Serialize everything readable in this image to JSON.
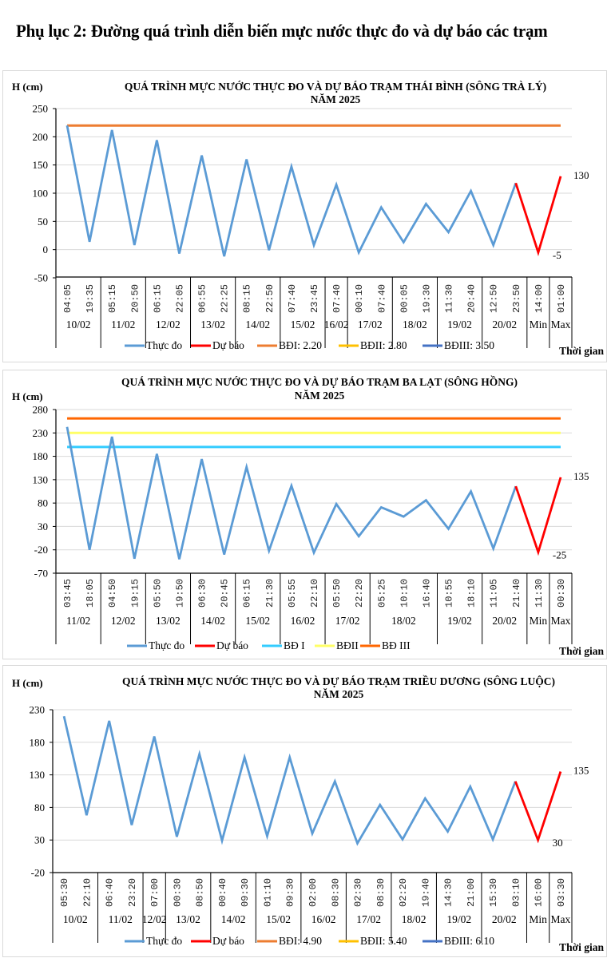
{
  "page": {
    "title": "Phụ lục 2: Đường quá trình diễn biến mực nước thực đo và dự báo các trạm"
  },
  "chart_data": [
    {
      "id": "thai-binh",
      "type": "line",
      "title": [
        "QUÁ TRÌNH MỰC NƯỚC THỰC ĐO VÀ DỰ BÁO TRẠM THÁI BÌNH (SÔNG TRÀ LÝ)",
        "NĂM 2025"
      ],
      "ylabel": "H (cm)",
      "xlabel": "Thời gian",
      "ylim": [
        -50,
        250
      ],
      "yticks": [
        -50,
        0,
        50,
        100,
        150,
        200,
        250
      ],
      "grid": true,
      "legend_position": "bottom",
      "x": [
        "04:05",
        "19:35",
        "05:15",
        "20:50",
        "06:15",
        "22:05",
        "06:55",
        "22:25",
        "08:15",
        "22:50",
        "07:40",
        "23:45",
        "07:40",
        "00:10",
        "07:40",
        "00:05",
        "19:30",
        "11:30",
        "20:40",
        "12:50",
        "23:50",
        "14:00",
        "01:00"
      ],
      "groups": [
        {
          "label": "10/02",
          "count": 2
        },
        {
          "label": "11/02",
          "count": 2
        },
        {
          "label": "12/02",
          "count": 2
        },
        {
          "label": "13/02",
          "count": 2
        },
        {
          "label": "14/02",
          "count": 2
        },
        {
          "label": "15/02",
          "count": 2
        },
        {
          "label": "16/02",
          "count": 1
        },
        {
          "label": "17/02",
          "count": 2
        },
        {
          "label": "18/02",
          "count": 2
        },
        {
          "label": "19/02",
          "count": 2
        },
        {
          "label": "20/02",
          "count": 2
        },
        {
          "label": "Min",
          "count": 1
        },
        {
          "label": "Max",
          "count": 1
        }
      ],
      "series": [
        {
          "name": "Thực đo",
          "color": "#5b9bd5",
          "kind": "line",
          "values": [
            220,
            14,
            212,
            8,
            194,
            -7,
            167,
            -12,
            160,
            -1,
            147,
            8,
            115,
            -5,
            75,
            13,
            81,
            31,
            104,
            8,
            118,
            null,
            null
          ]
        },
        {
          "name": "Dự báo",
          "color": "#ff0000",
          "kind": "line",
          "values": [
            null,
            null,
            null,
            null,
            null,
            null,
            null,
            null,
            null,
            null,
            null,
            null,
            null,
            null,
            null,
            null,
            null,
            null,
            null,
            null,
            118,
            -5,
            130
          ]
        },
        {
          "name": "BĐI: 2.20",
          "color": "#ed7d31",
          "kind": "hline",
          "value": 220
        },
        {
          "name": "BĐII: 2.80",
          "color": "#ffc000",
          "kind": "hline",
          "value": null
        },
        {
          "name": "BĐIII: 3.50",
          "color": "#4472c4",
          "kind": "hline",
          "value": null
        }
      ],
      "annotations": [
        {
          "index": 21,
          "text": "-5"
        },
        {
          "index": 22,
          "text": "130"
        }
      ]
    },
    {
      "id": "ba-lat",
      "type": "line",
      "title": [
        "QUÁ TRÌNH MỰC NƯỚC THỰC ĐO VÀ DỰ BÁO TRẠM BA LẠT (SÔNG HỒNG)",
        "NĂM 2025"
      ],
      "ylabel": "H (cm)",
      "xlabel": "Thời gian",
      "ylim": [
        -70,
        280
      ],
      "yticks": [
        -70,
        -20,
        30,
        80,
        130,
        180,
        230,
        280
      ],
      "grid": true,
      "legend_position": "bottom",
      "x": [
        "03:45",
        "18:05",
        "04:50",
        "19:15",
        "05:50",
        "19:50",
        "06:30",
        "20:45",
        "06:15",
        "21:30",
        "05:55",
        "22:10",
        "05:50",
        "22:20",
        "05:25",
        "10:10",
        "16:40",
        "10:55",
        "18:10",
        "11:05",
        "21:40",
        "11:30",
        "00:30"
      ],
      "groups": [
        {
          "label": "11/02",
          "count": 2
        },
        {
          "label": "12/02",
          "count": 2
        },
        {
          "label": "13/02",
          "count": 2
        },
        {
          "label": "14/02",
          "count": 2
        },
        {
          "label": "15/02",
          "count": 2
        },
        {
          "label": "16/02",
          "count": 2
        },
        {
          "label": "17/02",
          "count": 2
        },
        {
          "label": "18/02",
          "count": 3
        },
        {
          "label": "19/02",
          "count": 2
        },
        {
          "label": "20/02",
          "count": 2
        },
        {
          "label": "Min",
          "count": 1
        },
        {
          "label": "Max",
          "count": 1
        }
      ],
      "series": [
        {
          "name": "Thực đo",
          "color": "#5b9bd5",
          "kind": "line",
          "values": [
            243,
            -20,
            222,
            -39,
            185,
            -40,
            174,
            -30,
            157,
            -22,
            117,
            -26,
            78,
            9,
            71,
            51,
            86,
            25,
            105,
            -17,
            116,
            null,
            null
          ]
        },
        {
          "name": "Dự báo",
          "color": "#ff0000",
          "kind": "line",
          "values": [
            null,
            null,
            null,
            null,
            null,
            null,
            null,
            null,
            null,
            null,
            null,
            null,
            null,
            null,
            null,
            null,
            null,
            null,
            null,
            null,
            116,
            -25,
            135
          ]
        },
        {
          "name": "BĐ I",
          "color": "#33ccff",
          "kind": "hline",
          "value": 200
        },
        {
          "name": "BĐII",
          "color": "#ffff66",
          "kind": "hline",
          "value": 230
        },
        {
          "name": "BĐ III",
          "color": "#ff6600",
          "kind": "hline",
          "value": 261
        }
      ],
      "annotations": [
        {
          "index": 21,
          "text": "-25"
        },
        {
          "index": 22,
          "text": "135"
        }
      ]
    },
    {
      "id": "trieu-duong",
      "type": "line",
      "title": [
        "QUÁ TRÌNH MỰC NƯỚC THỰC ĐO VÀ DỰ BÁO TRẠM TRIỀU DƯƠNG (SÔNG LUỘC)",
        "NĂM 2025"
      ],
      "ylabel": "H (cm)",
      "xlabel": "Thời gian",
      "ylim": [
        -20,
        230
      ],
      "yticks": [
        -20,
        30,
        80,
        130,
        180,
        230
      ],
      "grid": true,
      "legend_position": "bottom",
      "x": [
        "05:30",
        "22:10",
        "06:40",
        "23:20",
        "07:00",
        "00:30",
        "08:50",
        "00:40",
        "09:30",
        "01:10",
        "09:30",
        "02:00",
        "08:30",
        "02:30",
        "08:30",
        "02:20",
        "19:40",
        "14:30",
        "21:00",
        "15:30",
        "03:10",
        "16:00",
        "03:30"
      ],
      "groups": [
        {
          "label": "10/02",
          "count": 2
        },
        {
          "label": "11/02",
          "count": 2
        },
        {
          "label": "12/02",
          "count": 1
        },
        {
          "label": "13/02",
          "count": 2
        },
        {
          "label": "14/02",
          "count": 2
        },
        {
          "label": "15/02",
          "count": 2
        },
        {
          "label": "16/02",
          "count": 2
        },
        {
          "label": "17/02",
          "count": 2
        },
        {
          "label": "18/02",
          "count": 2
        },
        {
          "label": "19/02",
          "count": 2
        },
        {
          "label": "20/02",
          "count": 2
        },
        {
          "label": "Min",
          "count": 1
        },
        {
          "label": "Max",
          "count": 1
        }
      ],
      "series": [
        {
          "name": "Thực đo",
          "color": "#5b9bd5",
          "kind": "line",
          "values": [
            220,
            68,
            213,
            53,
            189,
            35,
            162,
            29,
            157,
            36,
            157,
            40,
            120,
            25,
            84,
            31,
            94,
            43,
            112,
            31,
            120,
            null,
            null
          ]
        },
        {
          "name": "Dự báo",
          "color": "#ff0000",
          "kind": "line",
          "values": [
            null,
            null,
            null,
            null,
            null,
            null,
            null,
            null,
            null,
            null,
            null,
            null,
            null,
            null,
            null,
            null,
            null,
            null,
            null,
            null,
            120,
            30,
            135
          ]
        },
        {
          "name": "BĐI: 4.90",
          "color": "#ed7d31",
          "kind": "hline",
          "value": null
        },
        {
          "name": "BĐII: 5.40",
          "color": "#ffc000",
          "kind": "hline",
          "value": null
        },
        {
          "name": "BĐIII: 6.10",
          "color": "#4472c4",
          "kind": "hline",
          "value": null
        }
      ],
      "annotations": [
        {
          "index": 21,
          "text": "30"
        },
        {
          "index": 22,
          "text": "135"
        }
      ]
    }
  ]
}
